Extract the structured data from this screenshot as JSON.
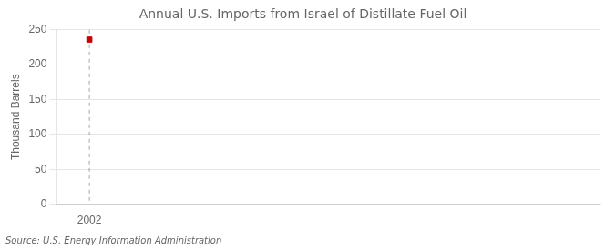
{
  "chart_data": {
    "type": "scatter",
    "title": "Annual U.S. Imports from Israel of Distillate Fuel Oil",
    "y_label": "Thousand Barrels",
    "source": "Source: U.S. Energy Information Administration",
    "x": [
      2002
    ],
    "values": [
      236
    ],
    "color": "#cc0000",
    "marker": "square",
    "vline": 2002,
    "xlim": [
      2001.3,
      2013
    ],
    "xticks": [
      2002
    ],
    "ylim": [
      0,
      250
    ],
    "yticks": [
      0,
      50,
      100,
      150,
      200,
      250
    ],
    "grid": "y"
  }
}
